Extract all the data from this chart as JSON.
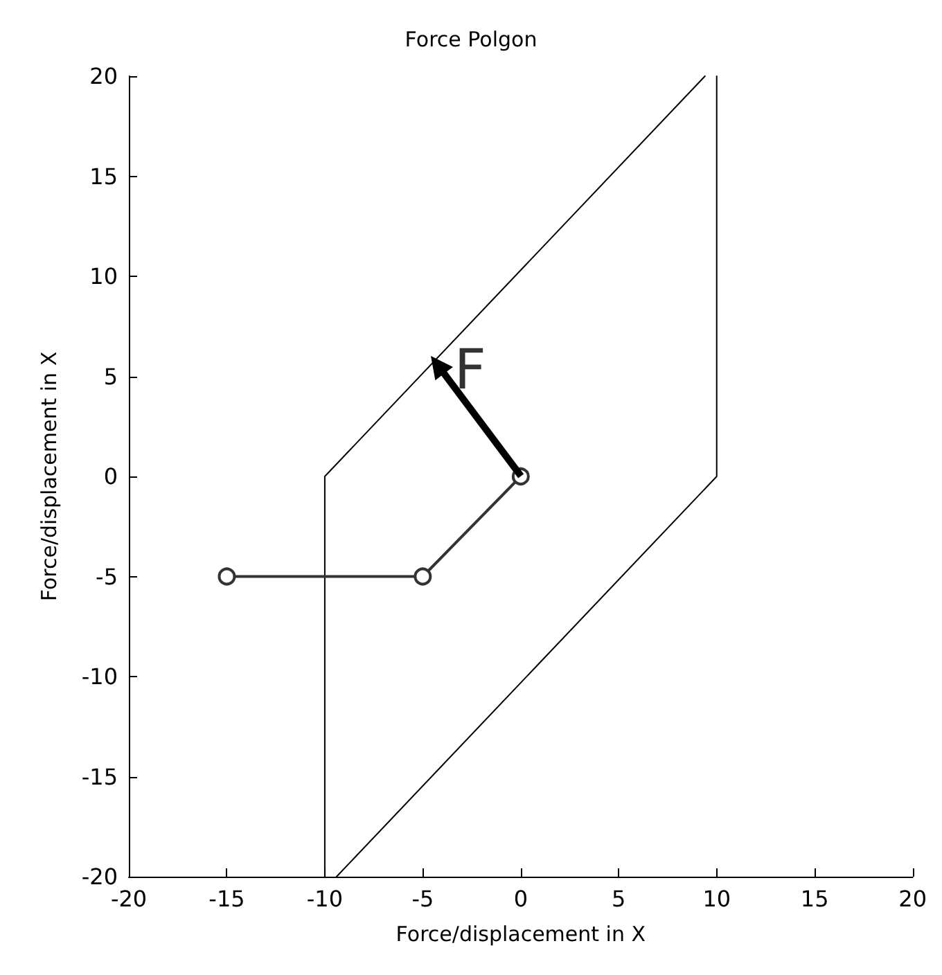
{
  "chart_data": {
    "type": "line",
    "title": "Force Polgon",
    "xlabel": "Force/displacement in X",
    "ylabel": "Force/displacement in X",
    "xlim": [
      -20,
      20
    ],
    "ylim": [
      -20,
      20
    ],
    "xticks": [
      -20,
      -15,
      -10,
      -5,
      0,
      5,
      10,
      15,
      20
    ],
    "yticks": [
      -20,
      -15,
      -10,
      -5,
      0,
      5,
      10,
      15,
      20
    ],
    "grid": false,
    "marker": "none",
    "line_style": "solid",
    "series": [
      {
        "color": "#000000",
        "x": [
          -10,
          -10,
          9.4
        ],
        "values": [
          -20,
          0,
          20
        ]
      },
      {
        "color": "#000000",
        "x": [
          10,
          10,
          -9.4
        ],
        "values": [
          20,
          0,
          -20
        ]
      },
      {
        "color": "#333333",
        "x": [
          -15,
          -5,
          0
        ],
        "values": [
          -5,
          -5,
          0
        ],
        "marker": "circle"
      }
    ],
    "annotations": [
      {
        "text": "F",
        "x": -4.6,
        "y": 6
      }
    ]
  }
}
